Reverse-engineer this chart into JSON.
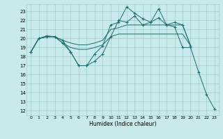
{
  "xlabel": "Humidex (Indice chaleur)",
  "bg_color": "#c8eaea",
  "grid_color": "#a0cccc",
  "line_color": "#1e6b6b",
  "ylim": [
    11.5,
    23.8
  ],
  "xlim": [
    -0.5,
    23.5
  ],
  "yticks": [
    12,
    13,
    14,
    15,
    16,
    17,
    18,
    19,
    20,
    21,
    22,
    23
  ],
  "xticks": [
    0,
    1,
    2,
    3,
    4,
    5,
    6,
    7,
    8,
    9,
    10,
    11,
    12,
    13,
    14,
    15,
    16,
    17,
    18,
    19,
    20,
    21,
    22,
    23
  ],
  "series": [
    {
      "x": [
        0,
        1,
        2,
        3,
        4,
        5,
        6,
        7,
        8,
        9,
        10,
        11,
        12,
        13,
        14,
        15,
        16,
        17,
        18,
        19,
        20,
        21,
        22,
        23
      ],
      "y": [
        18.5,
        20.0,
        20.2,
        20.2,
        19.8,
        18.5,
        17.0,
        17.0,
        18.3,
        19.2,
        21.5,
        21.8,
        23.5,
        22.8,
        22.2,
        21.8,
        22.3,
        21.5,
        21.3,
        19.0,
        19.0,
        16.3,
        13.8,
        12.2
      ],
      "marker": true
    },
    {
      "x": [
        0,
        1,
        2,
        3,
        4,
        5,
        6,
        7,
        8,
        9,
        10,
        11,
        12,
        13,
        14,
        15,
        16,
        17,
        18,
        19,
        20
      ],
      "y": [
        18.5,
        20.0,
        20.2,
        20.2,
        19.8,
        19.5,
        19.3,
        19.3,
        19.5,
        19.8,
        21.0,
        21.2,
        21.5,
        21.5,
        21.5,
        21.5,
        21.5,
        21.5,
        21.5,
        21.5,
        19.2
      ],
      "marker": false
    },
    {
      "x": [
        0,
        1,
        2,
        3,
        4,
        5,
        6,
        7,
        8,
        9,
        10,
        11,
        12,
        13,
        14,
        15,
        16,
        17,
        18,
        19,
        20
      ],
      "y": [
        18.5,
        20.0,
        20.2,
        20.2,
        19.5,
        19.0,
        18.8,
        18.8,
        19.0,
        19.3,
        20.2,
        20.5,
        20.5,
        20.5,
        20.5,
        20.5,
        20.5,
        20.5,
        20.5,
        20.5,
        19.2
      ],
      "marker": false
    },
    {
      "x": [
        0,
        1,
        2,
        3,
        4,
        5,
        6,
        7,
        8,
        9,
        10,
        11,
        12,
        13,
        14,
        15,
        16,
        17,
        18,
        19,
        20
      ],
      "y": [
        18.5,
        20.0,
        20.3,
        20.2,
        19.5,
        18.5,
        17.0,
        17.0,
        17.5,
        18.3,
        20.2,
        22.0,
        21.8,
        22.5,
        21.5,
        21.8,
        23.3,
        21.5,
        21.8,
        21.5,
        19.2
      ],
      "marker": true
    }
  ]
}
